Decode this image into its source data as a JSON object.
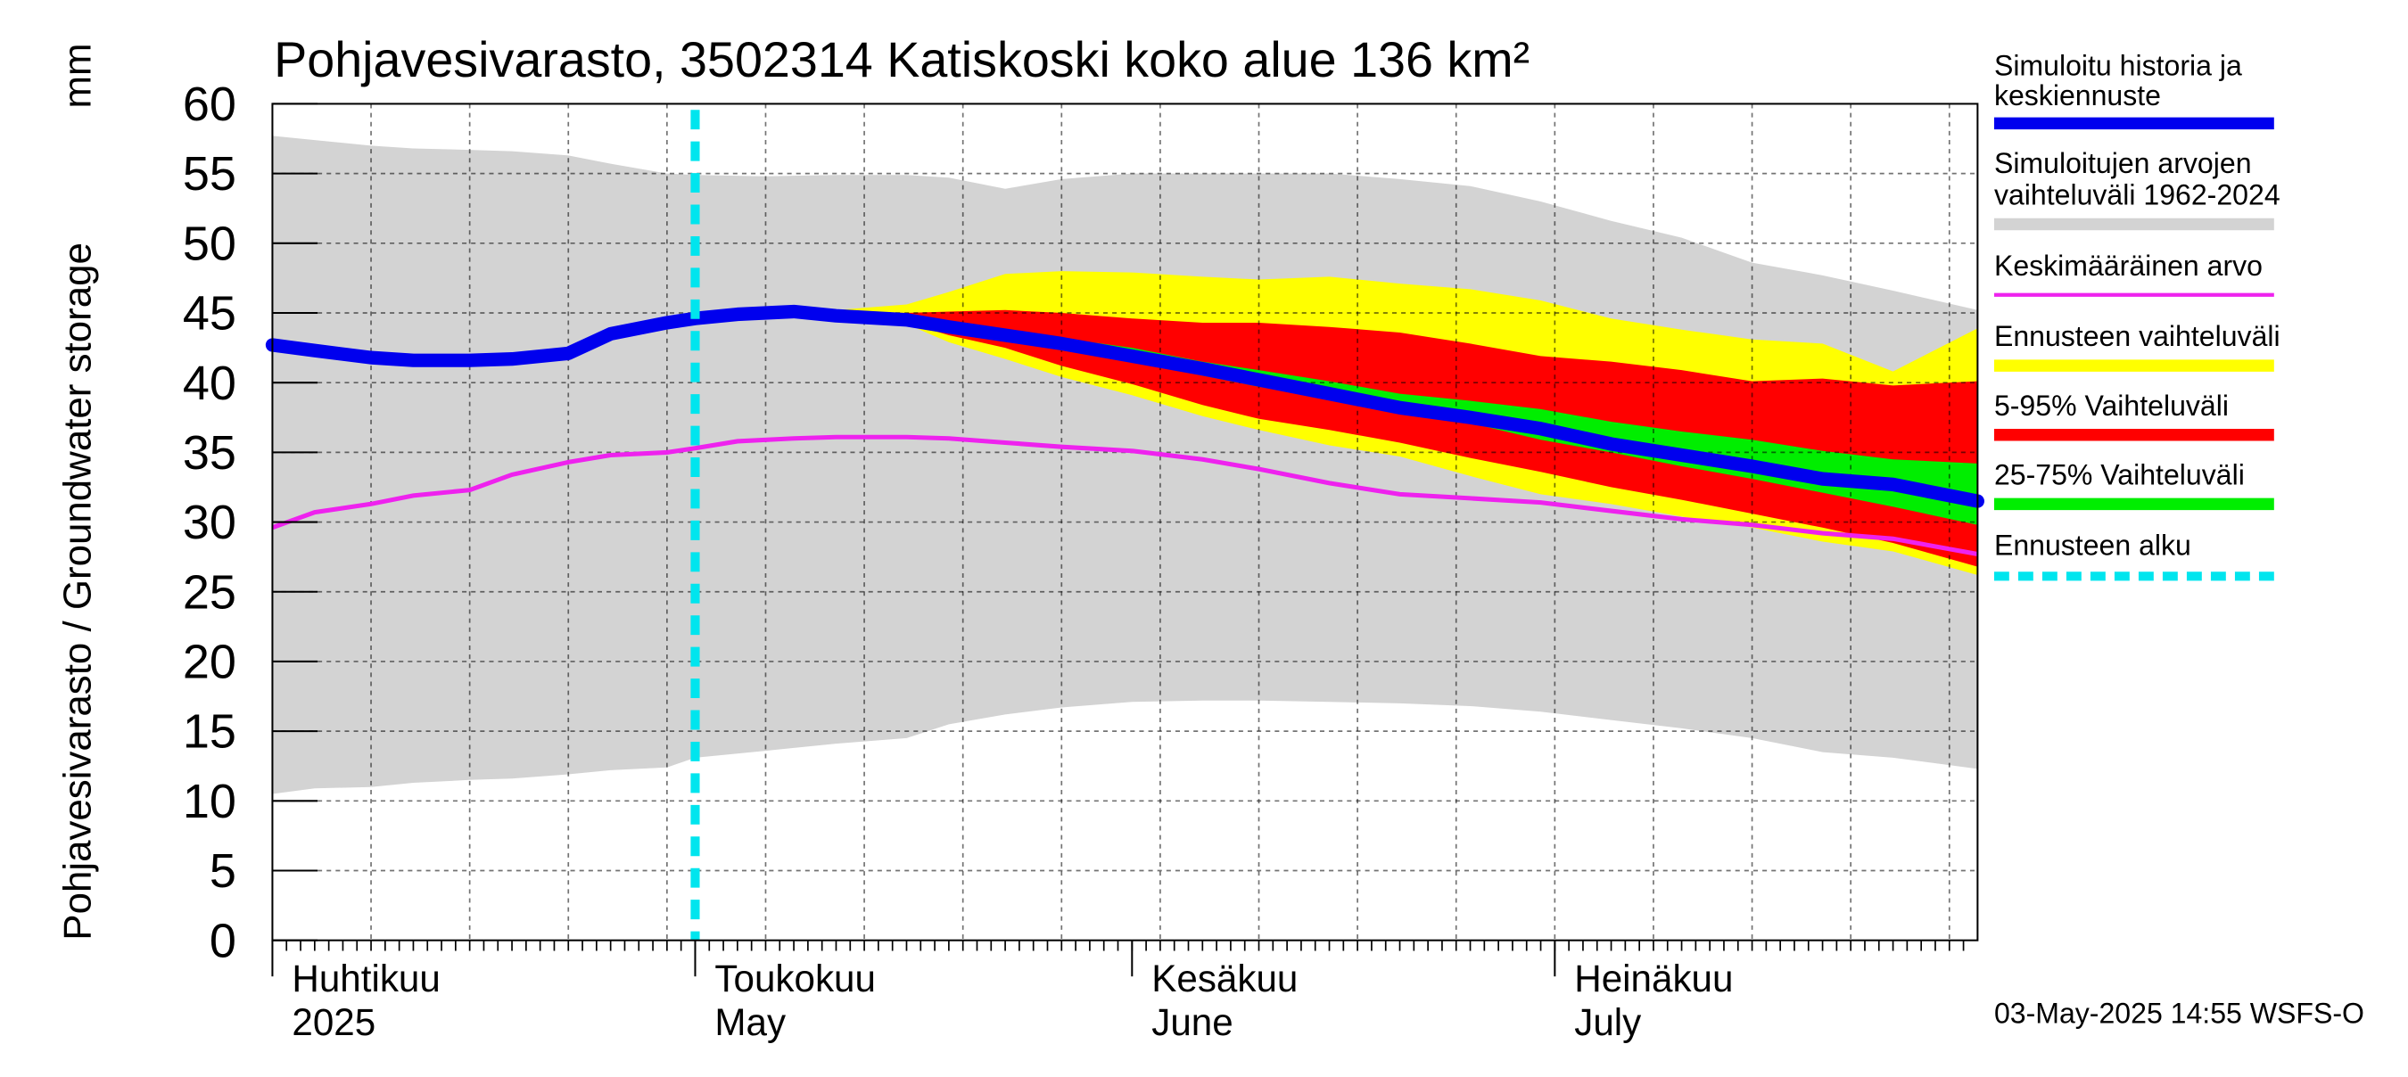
{
  "chart_data": {
    "type": "area",
    "title": "Pohjavesivarasto, 3502314 Katiskoski koko alue 136 km²",
    "ylabel": "Pohjavesivarasto / Groundwater storage",
    "yunit": "mm",
    "ylim": [
      0,
      60
    ],
    "yticks": [
      0,
      5,
      10,
      15,
      20,
      25,
      30,
      35,
      40,
      45,
      50,
      55,
      60
    ],
    "xlim_days": [
      0,
      121
    ],
    "month_ticks": [
      {
        "day": 0,
        "fi": "Huhtikuu",
        "en": "2025"
      },
      {
        "day": 30,
        "fi": "Toukokuu",
        "en": "May"
      },
      {
        "day": 61,
        "fi": "Kesäkuu",
        "en": "June"
      },
      {
        "day": 91,
        "fi": "Heinäkuu",
        "en": "July"
      }
    ],
    "week_days": [
      7,
      14,
      21,
      28,
      35,
      42,
      49,
      56,
      63,
      70,
      77,
      84,
      91,
      98,
      105,
      112,
      119
    ],
    "forecast_start_day": 30,
    "footer": "03-May-2025 14:55 WSFS-O",
    "legend": [
      {
        "label": "Simuloitu historia ja keskiennuste",
        "color": "#0000ee",
        "style": "thick"
      },
      {
        "label": "Simuloitujen arvojen vaihteluväli 1962-2024",
        "color": "#d3d3d3",
        "style": "band"
      },
      {
        "label": "Keskimääräinen arvo",
        "color": "#ee22ee",
        "style": "thin"
      },
      {
        "label": "Ennusteen vaihteluväli",
        "color": "#ffff00",
        "style": "band"
      },
      {
        "label": "5-95% Vaihteluväli",
        "color": "#ff0000",
        "style": "band"
      },
      {
        "label": "25-75% Vaihteluväli",
        "color": "#00ee00",
        "style": "band"
      },
      {
        "label": "Ennusteen alku",
        "color": "#00e5ee",
        "style": "dashed"
      }
    ],
    "series": [
      {
        "name": "hist_max",
        "x": [
          0,
          3,
          7,
          10,
          14,
          17,
          21,
          24,
          28,
          30,
          35,
          40,
          45,
          48,
          52,
          56,
          61,
          66,
          70,
          75,
          80,
          85,
          90,
          95,
          100,
          105,
          110,
          115,
          121
        ],
        "values": [
          57.7,
          57.4,
          57.0,
          56.8,
          56.7,
          56.6,
          56.3,
          55.7,
          55.0,
          54.9,
          54.8,
          54.9,
          54.9,
          54.7,
          53.9,
          54.6,
          55.0,
          55.0,
          55.0,
          55.0,
          54.6,
          54.1,
          53.0,
          51.6,
          50.4,
          48.6,
          47.7,
          46.6,
          45.2
        ]
      },
      {
        "name": "hist_min",
        "x": [
          0,
          3,
          7,
          10,
          14,
          17,
          21,
          24,
          28,
          30,
          35,
          40,
          45,
          48,
          52,
          56,
          61,
          66,
          70,
          75,
          80,
          85,
          90,
          95,
          100,
          105,
          110,
          115,
          121
        ],
        "values": [
          10.5,
          10.9,
          11.0,
          11.3,
          11.5,
          11.6,
          11.9,
          12.2,
          12.4,
          13.1,
          13.6,
          14.1,
          14.5,
          15.5,
          16.2,
          16.7,
          17.1,
          17.2,
          17.2,
          17.1,
          17.0,
          16.8,
          16.4,
          15.8,
          15.2,
          14.5,
          13.5,
          13.1,
          12.3
        ]
      },
      {
        "name": "fc_max",
        "x": [
          37,
          40,
          45,
          48,
          52,
          56,
          61,
          66,
          70,
          75,
          80,
          85,
          90,
          95,
          100,
          105,
          110,
          115,
          121
        ],
        "values": [
          45.1,
          45.2,
          45.6,
          46.5,
          47.8,
          48.0,
          47.9,
          47.6,
          47.4,
          47.6,
          47.1,
          46.7,
          45.9,
          44.6,
          43.8,
          43.1,
          42.8,
          40.8,
          43.9
        ]
      },
      {
        "name": "fc_min",
        "x": [
          37,
          40,
          45,
          48,
          52,
          56,
          61,
          66,
          70,
          75,
          80,
          85,
          90,
          95,
          100,
          105,
          110,
          115,
          121
        ],
        "values": [
          45.1,
          44.8,
          44.2,
          42.9,
          41.7,
          40.4,
          39.1,
          37.6,
          36.6,
          35.5,
          34.7,
          33.3,
          32.0,
          31.3,
          30.4,
          29.6,
          28.6,
          27.9,
          26.2
        ]
      },
      {
        "name": "p95",
        "x": [
          37,
          40,
          45,
          48,
          52,
          56,
          61,
          66,
          70,
          75,
          80,
          85,
          90,
          95,
          100,
          105,
          110,
          115,
          121
        ],
        "values": [
          45.1,
          45.1,
          45.0,
          45.1,
          45.2,
          45.0,
          44.6,
          44.3,
          44.3,
          44.0,
          43.6,
          42.8,
          41.9,
          41.5,
          40.9,
          40.1,
          40.3,
          39.8,
          40.1
        ]
      },
      {
        "name": "p5",
        "x": [
          37,
          40,
          45,
          48,
          52,
          56,
          61,
          66,
          70,
          75,
          80,
          85,
          90,
          95,
          100,
          105,
          110,
          115,
          121
        ],
        "values": [
          45.1,
          44.9,
          44.3,
          43.4,
          42.5,
          41.2,
          39.9,
          38.4,
          37.4,
          36.6,
          35.7,
          34.6,
          33.6,
          32.5,
          31.6,
          30.6,
          29.6,
          28.5,
          26.8
        ]
      },
      {
        "name": "p75",
        "x": [
          37,
          40,
          45,
          48,
          52,
          56,
          61,
          66,
          70,
          75,
          80,
          85,
          90,
          95,
          100,
          105,
          110,
          115,
          121
        ],
        "values": [
          45.1,
          45.0,
          44.7,
          44.3,
          43.8,
          43.2,
          42.5,
          41.5,
          40.9,
          40.1,
          39.2,
          38.7,
          38.1,
          37.2,
          36.5,
          35.9,
          35.1,
          34.5,
          34.2
        ]
      },
      {
        "name": "p25",
        "x": [
          37,
          40,
          45,
          48,
          52,
          56,
          61,
          66,
          70,
          75,
          80,
          85,
          90,
          95,
          100,
          105,
          110,
          115,
          121
        ],
        "values": [
          45.1,
          44.9,
          44.5,
          43.9,
          43.3,
          42.6,
          41.5,
          40.5,
          39.7,
          38.9,
          38.0,
          37.1,
          35.9,
          35.0,
          34.0,
          33.1,
          32.1,
          31.1,
          29.8
        ]
      },
      {
        "name": "mean_forecast",
        "x": [
          0,
          3,
          7,
          10,
          14,
          17,
          21,
          24,
          28,
          30,
          33,
          37,
          40,
          45,
          48,
          52,
          56,
          61,
          66,
          70,
          75,
          80,
          85,
          90,
          95,
          100,
          105,
          110,
          115,
          121
        ],
        "values": [
          42.7,
          42.3,
          41.8,
          41.6,
          41.6,
          41.7,
          42.1,
          43.5,
          44.3,
          44.6,
          44.9,
          45.1,
          44.8,
          44.5,
          44.0,
          43.4,
          42.8,
          41.9,
          41.0,
          40.2,
          39.2,
          38.2,
          37.5,
          36.7,
          35.6,
          34.8,
          34.0,
          33.1,
          32.7,
          31.5
        ]
      },
      {
        "name": "long_term_mean",
        "x": [
          0,
          3,
          7,
          10,
          14,
          17,
          21,
          24,
          28,
          30,
          33,
          37,
          40,
          45,
          48,
          52,
          56,
          61,
          66,
          70,
          75,
          80,
          85,
          90,
          95,
          100,
          105,
          110,
          115,
          121
        ],
        "values": [
          29.6,
          30.7,
          31.3,
          31.9,
          32.3,
          33.4,
          34.3,
          34.8,
          35.0,
          35.3,
          35.8,
          36.0,
          36.1,
          36.1,
          36.0,
          35.7,
          35.4,
          35.1,
          34.5,
          33.8,
          32.8,
          32.0,
          31.7,
          31.4,
          30.8,
          30.2,
          29.8,
          29.2,
          28.8,
          27.7
        ]
      }
    ]
  }
}
